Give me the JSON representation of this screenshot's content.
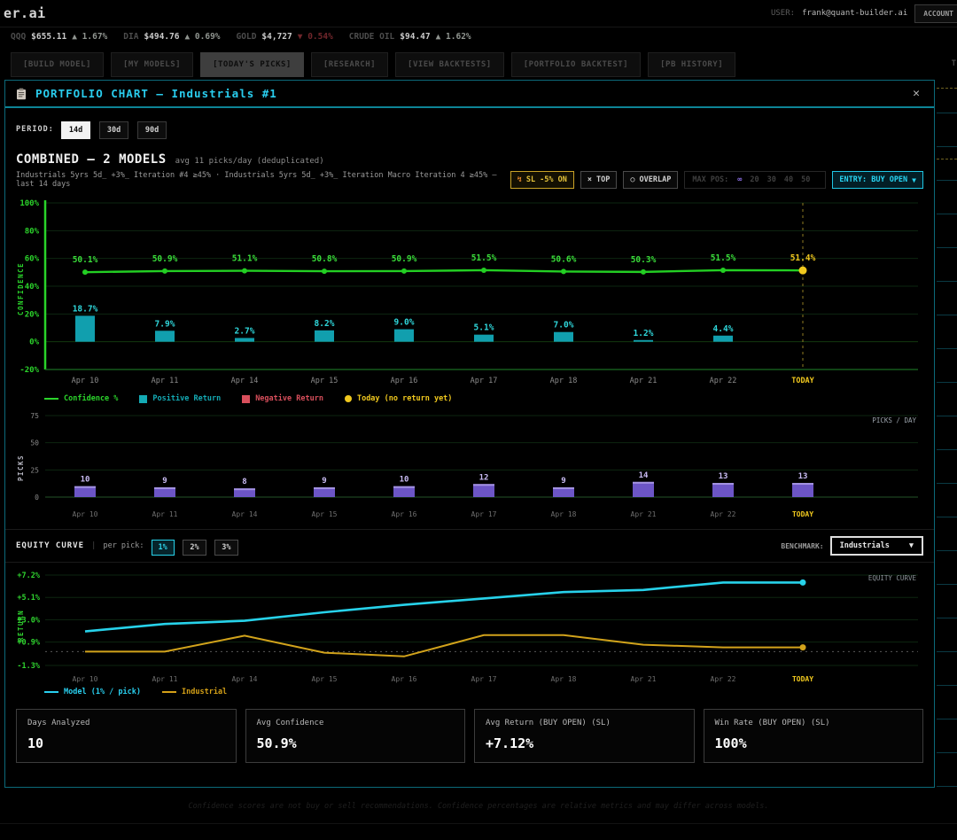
{
  "app": {
    "logo": "er.ai",
    "user_label": "USER:",
    "user_email": "frank@quant-builder.ai",
    "account_button": "ACCOUNT"
  },
  "ticker": {
    "items": [
      {
        "symbol": "QQQ",
        "price": "$655.11",
        "dir": "up",
        "change": "1.67%"
      },
      {
        "symbol": "DIA",
        "price": "$494.76",
        "dir": "up",
        "change": "0.69%"
      },
      {
        "symbol": "GOLD",
        "price": "$4,727",
        "dir": "down",
        "change": "0.54%"
      },
      {
        "symbol": "CRUDE OIL",
        "price": "$94.47",
        "dir": "up",
        "change": "1.62%"
      }
    ]
  },
  "nav": {
    "tabs": [
      {
        "label": "[BUILD MODEL]",
        "active": false
      },
      {
        "label": "[MY MODELS]",
        "active": false
      },
      {
        "label": "[TODAY'S PICKS]",
        "active": true
      },
      {
        "label": "[RESEARCH]",
        "active": false
      },
      {
        "label": "[VIEW BACKTESTS]",
        "active": false
      },
      {
        "label": "[PORTFOLIO BACKTEST]",
        "active": false
      },
      {
        "label": "[PB HISTORY]",
        "active": false
      }
    ],
    "overflow_right": "T"
  },
  "modal": {
    "title": "PORTFOLIO CHART — Industrials #1",
    "close_label": "✕",
    "period": {
      "label": "PERIOD:",
      "options": [
        "14d",
        "30d",
        "90d"
      ],
      "selected": "14d"
    },
    "combined": {
      "title": "COMBINED — 2 MODELS",
      "subtitle": "avg 11 picks/day (deduplicated)"
    },
    "models_line": "Industrials 5yrs 5d_ +3%_ Iteration #4 ≥45% · Industrials 5yrs 5d_ +3%_ Iteration Macro Iteration 4 ≥45% — last 14 days",
    "controls": {
      "sl": {
        "icon": "↯",
        "label": "SL -5% ON"
      },
      "top": {
        "icon": "×",
        "label": "TOP"
      },
      "overlap": {
        "icon": "○",
        "label": "OVERLAP"
      },
      "max_pos": {
        "label": "MAX POS:",
        "options": [
          "∞",
          "20",
          "30",
          "40",
          "50"
        ],
        "selected": "∞"
      },
      "entry": {
        "label": "ENTRY: BUY OPEN",
        "chevron": "▼"
      }
    },
    "equity_header": {
      "title": "EQUITY CURVE",
      "sep": "|",
      "per_pick_label": "per pick:",
      "options": [
        "1%",
        "2%",
        "3%"
      ],
      "selected": "1%",
      "benchmark_label": "BENCHMARK:",
      "benchmark_value": "Industrials",
      "benchmark_chevron": "▼"
    },
    "stats": [
      {
        "label": "Days Analyzed",
        "value": "10"
      },
      {
        "label": "Avg Confidence",
        "value": "50.9%"
      },
      {
        "label": "Avg Return (BUY OPEN) (SL)",
        "value": "+7.12%"
      },
      {
        "label": "Win Rate (BUY OPEN) (SL)",
        "value": "100%"
      }
    ]
  },
  "chart_data": [
    {
      "id": "confidence_returns",
      "type": "bar+line",
      "ylabel": "CONFIDENCE",
      "ylim": [
        -20,
        100
      ],
      "yticks": [
        {
          "v": 100,
          "label": "100%"
        },
        {
          "v": 80,
          "label": "80%"
        },
        {
          "v": 60,
          "label": "60%"
        },
        {
          "v": 40,
          "label": "40%"
        },
        {
          "v": 20,
          "label": "20%"
        },
        {
          "v": 0,
          "label": "0%"
        },
        {
          "v": -20,
          "label": "-20%"
        }
      ],
      "categories": [
        "Apr 10",
        "Apr 11",
        "Apr 14",
        "Apr 15",
        "Apr 16",
        "Apr 17",
        "Apr 18",
        "Apr 21",
        "Apr 22",
        "TODAY"
      ],
      "today_index": 9,
      "series": [
        {
          "name": "Confidence %",
          "type": "line",
          "color": "#23cf23",
          "values": [
            50.1,
            50.9,
            51.1,
            50.8,
            50.9,
            51.5,
            50.6,
            50.3,
            51.5,
            51.4
          ]
        },
        {
          "name": "Positive Return",
          "type": "bar",
          "color": "#119fae",
          "values": [
            18.7,
            7.9,
            2.7,
            8.2,
            9.0,
            5.1,
            7.0,
            1.2,
            4.4,
            null
          ]
        }
      ],
      "legend": [
        {
          "label": "Confidence %",
          "color": "#2bd42b",
          "swatch": "line"
        },
        {
          "label": "Positive Return",
          "color": "#14aab4",
          "swatch": "square"
        },
        {
          "label": "Negative Return",
          "color": "#d94f5c",
          "swatch": "square"
        },
        {
          "label": "Today (no return yet)",
          "color": "#f0c81e",
          "swatch": "circle"
        }
      ]
    },
    {
      "id": "picks_per_day",
      "type": "bar",
      "ylabel": "PICKS",
      "corner_label": "PICKS / DAY",
      "ylim": [
        0,
        75
      ],
      "yticks": [
        {
          "v": 75,
          "label": "75"
        },
        {
          "v": 50,
          "label": "50"
        },
        {
          "v": 25,
          "label": "25"
        },
        {
          "v": 0,
          "label": "0"
        }
      ],
      "categories": [
        "Apr 10",
        "Apr 11",
        "Apr 14",
        "Apr 15",
        "Apr 16",
        "Apr 17",
        "Apr 18",
        "Apr 21",
        "Apr 22",
        "TODAY"
      ],
      "today_index": 9,
      "color": "#6c55c6",
      "values": [
        10,
        9,
        8,
        9,
        10,
        12,
        9,
        14,
        13,
        13
      ]
    },
    {
      "id": "equity_curve",
      "type": "line",
      "ylabel": "RETURN",
      "corner_label": "EQUITY CURVE",
      "ylim": [
        -1.3,
        7.2
      ],
      "yticks": [
        {
          "v": 7.2,
          "label": "+7.2%"
        },
        {
          "v": 5.1,
          "label": "+5.1%"
        },
        {
          "v": 3.0,
          "label": "+3.0%"
        },
        {
          "v": 0.9,
          "label": "+0.9%"
        },
        {
          "v": -1.3,
          "label": "-1.3%"
        }
      ],
      "categories": [
        "Apr 10",
        "Apr 11",
        "Apr 14",
        "Apr 15",
        "Apr 16",
        "Apr 17",
        "Apr 18",
        "Apr 21",
        "Apr 22",
        "TODAY"
      ],
      "today_index": 9,
      "zero_line": true,
      "series": [
        {
          "name": "Model (1% / pick)",
          "color": "#27d2ea",
          "values": [
            1.9,
            2.6,
            2.9,
            3.7,
            4.4,
            5.0,
            5.6,
            5.8,
            6.5,
            6.5
          ]
        },
        {
          "name": "Industrial",
          "color": "#d2a31b",
          "values": [
            0.0,
            0.0,
            1.5,
            -0.1,
            -0.45,
            1.55,
            1.55,
            0.65,
            0.4,
            0.4
          ]
        }
      ],
      "legend": [
        {
          "label": "Model (1% / pick)",
          "color": "#29d0f0",
          "swatch": "line"
        },
        {
          "label": "Industrial",
          "color": "#d4a017",
          "swatch": "line"
        }
      ]
    }
  ],
  "footer": "Confidence scores are not buy or sell recommendations. Confidence percentages are relative metrics and may differ across models."
}
